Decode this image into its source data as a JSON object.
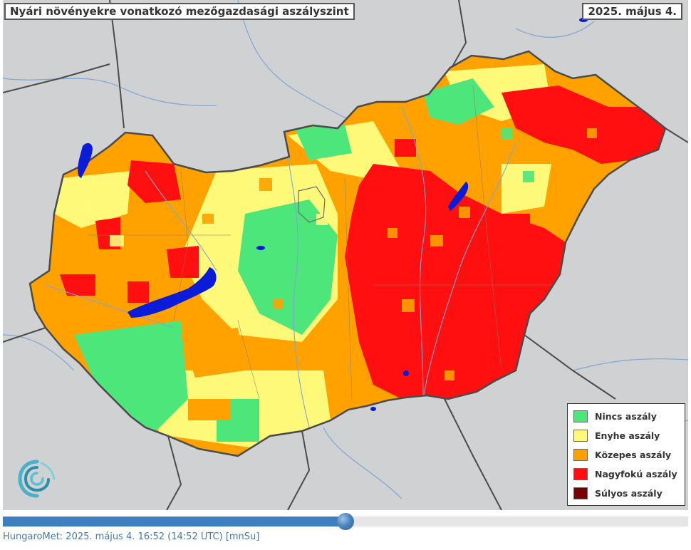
{
  "map": {
    "title": "Nyári növényekre vonatkozó mezőgazdasági aszályszint",
    "date": "2025. május 4.",
    "colors": {
      "background": "#cfd1d3",
      "water": "#0a1cd8",
      "border": "#4b4b4b"
    },
    "legend": [
      {
        "label": "Nincs aszály",
        "color": "#4de67a"
      },
      {
        "label": "Enyhe aszály",
        "color": "#fff97a"
      },
      {
        "label": "Közepes aszály",
        "color": "#ffa200"
      },
      {
        "label": "Nagyfokú aszály",
        "color": "#ff0f0f"
      },
      {
        "label": "Súlyos aszály",
        "color": "#7a0000"
      }
    ],
    "logo": "hungaromet-swirl-logo-icon"
  },
  "timeline": {
    "progress": 0.5
  },
  "footer": {
    "text": "HungaroMet: 2025. május 4. 16:52 (14:52  UTC)  [mnSu]"
  }
}
